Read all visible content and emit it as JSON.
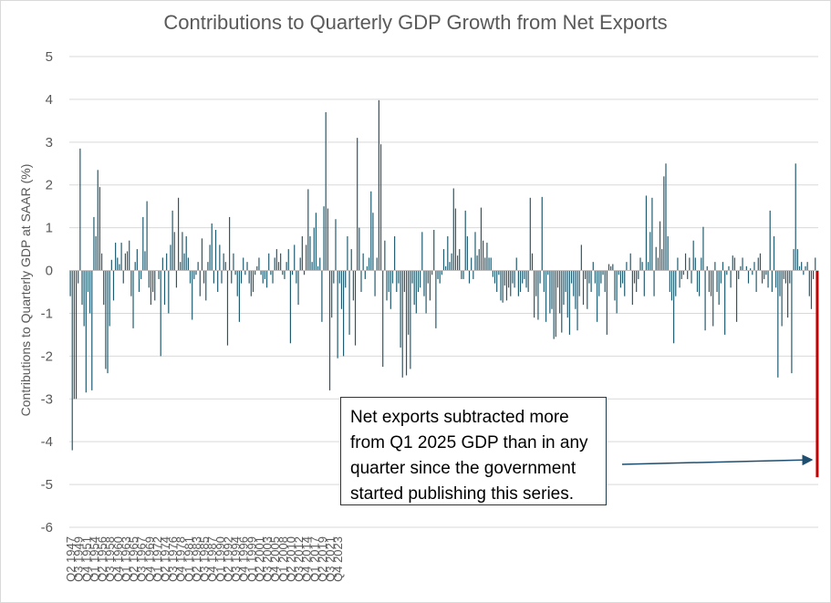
{
  "chart_data": {
    "type": "bar",
    "title": "Contributions to Quarterly GDP Growth from Net Exports",
    "ylabel": "Contributions to Quarterly GDP at SAAR (%)",
    "ylim": [
      -6,
      5
    ],
    "yticks": [
      5,
      4,
      3,
      2,
      1,
      0,
      -1,
      -2,
      -3,
      -4,
      -5,
      -6
    ],
    "grid": true,
    "legend": "none",
    "bar_color": "#1f5a6e",
    "highlight_color": "#c00000",
    "x_tick_labels": [
      "Q2 1947",
      "Q3 1949",
      "Q4 1951",
      "Q1 1954",
      "Q2 1956",
      "Q3 1958",
      "Q4 1960",
      "Q1 1963",
      "Q2 1965",
      "Q3 1967",
      "Q4 1969",
      "Q1 1972",
      "Q2 1974",
      "Q3 1976",
      "Q4 1978",
      "Q1 1981",
      "Q2 1983",
      "Q3 1985",
      "Q4 1987",
      "Q1 1990",
      "Q2 1992",
      "Q3 1994",
      "Q4 1996",
      "Q1 1999",
      "Q2 2001",
      "Q3 2003",
      "Q4 2005",
      "Q1 2008",
      "Q2 2010",
      "Q3 2012",
      "Q4 2014",
      "Q1 2017",
      "Q2 2019",
      "Q3 2021",
      "Q4 2023"
    ],
    "first_period": "Q2 1947",
    "last_period": "Q1 2025",
    "highlight": {
      "period": "Q1 2025",
      "value": -4.83
    },
    "values": [
      -0.6,
      -4.2,
      -3.0,
      -3.0,
      -0.3,
      2.85,
      -0.8,
      -1.3,
      -2.85,
      -0.5,
      -1.0,
      -2.8,
      1.25,
      0.8,
      2.35,
      1.95,
      0.4,
      -0.8,
      -2.3,
      -2.4,
      -1.3,
      0.25,
      -0.7,
      0.65,
      0.3,
      0.15,
      0.65,
      -0.3,
      0.4,
      0.45,
      0.7,
      -0.6,
      -1.35,
      0.2,
      0.5,
      -0.5,
      -0.2,
      1.25,
      0.45,
      1.62,
      -0.4,
      -0.8,
      -0.5,
      -0.7,
      0.0,
      -0.2,
      -2.0,
      0.3,
      -0.8,
      0.4,
      -1.0,
      0.6,
      1.4,
      0.9,
      -0.4,
      1.7,
      0.2,
      0.9,
      0.4,
      0.8,
      0.3,
      -0.3,
      -1.15,
      -0.2,
      -0.1,
      0.2,
      -0.6,
      0.75,
      -0.3,
      -0.7,
      0.2,
      0.6,
      1.1,
      -0.3,
      0.95,
      -0.5,
      0.6,
      -0.3,
      0.4,
      0.2,
      -1.75,
      1.25,
      -0.3,
      0.4,
      -0.1,
      -0.6,
      -1.2,
      -0.3,
      0.3,
      -0.1,
      0.2,
      -0.3,
      -0.6,
      -0.5,
      -0.1,
      0.1,
      0.3,
      -0.1,
      -0.3,
      -0.2,
      -0.4,
      0.4,
      -0.1,
      -0.3,
      0.3,
      0.5,
      0.2,
      0.4,
      -0.1,
      -0.2,
      0.2,
      0.5,
      -1.7,
      -0.1,
      0.6,
      -0.3,
      -0.8,
      0.3,
      0.8,
      -0.1,
      0.6,
      1.9,
      0.8,
      0.2,
      1.0,
      1.35,
      0.1,
      0.3,
      -1.2,
      1.5,
      3.7,
      1.45,
      -2.8,
      -1.1,
      -0.3,
      1.2,
      -2.05,
      -0.3,
      -0.9,
      -2.0,
      -0.4,
      0.8,
      -1.5,
      0.5,
      -0.7,
      -1.75,
      3.1,
      1.0,
      -0.5,
      0.4,
      -0.2,
      0.1,
      0.3,
      1.85,
      1.35,
      -0.6,
      0.3,
      3.98,
      2.95,
      -2.25,
      0.7,
      -0.7,
      -0.5,
      -0.9,
      -0.3,
      0.8,
      -0.5,
      -0.3,
      -1.8,
      -2.5,
      -0.5,
      -2.45,
      -1.5,
      -2.3,
      -0.3,
      -0.8,
      -1.0,
      -0.5,
      -0.4,
      0.9,
      -0.6,
      -1.0,
      -0.3,
      -0.7,
      -0.1,
      0.95,
      -1.35,
      -0.2,
      -0.3,
      -0.1,
      0.5,
      0.1,
      0.8,
      0.2,
      0.4,
      1.92,
      1.45,
      0.35,
      0.5,
      -0.2,
      -0.2,
      1.4,
      0.8,
      -0.3,
      0.3,
      -0.2,
      0.9,
      0.35,
      0.5,
      1.47,
      0.7,
      0.3,
      0.65,
      0.3,
      0.3,
      -0.15,
      -0.3,
      -0.5,
      -0.1,
      -0.7,
      -0.75,
      -0.35,
      -0.7,
      -0.4,
      -0.6,
      -0.3,
      -0.4,
      0.3,
      -0.6,
      -0.5,
      -0.3,
      -0.2,
      -0.4,
      -0.5,
      1.7,
      0.4,
      -1.1,
      -0.6,
      -1.15,
      -0.3,
      1.72,
      -0.5,
      -1.2,
      -0.1,
      -1.0,
      -0.9,
      -1.6,
      -1.55,
      -0.4,
      -1.0,
      -1.45,
      -0.8,
      -0.5,
      -1.1,
      -1.5,
      -0.3,
      -0.6,
      -0.9,
      -1.4,
      -0.6,
      0.6,
      -0.8,
      -0.2,
      -0.9,
      -0.3,
      -0.5,
      0.2,
      -0.3,
      -1.2,
      -0.6,
      -0.3,
      -0.1,
      -0.5,
      -1.5,
      0.15,
      0.1,
      0.15,
      -0.7,
      -1.0,
      -0.1,
      -0.4,
      -0.3,
      -0.6,
      0.2,
      0.0,
      0.4,
      -0.8,
      -0.3,
      -0.5,
      -0.2,
      0.3,
      0.2,
      -0.6,
      1.75,
      0.2,
      0.9,
      1.7,
      -0.6,
      0.55,
      0.3,
      1.15,
      0.5,
      2.2,
      2.5,
      0.8,
      -0.5,
      -0.7,
      -1.7,
      -0.6,
      0.3,
      -0.4,
      -0.2,
      -0.1,
      0.4,
      -0.2,
      0.3,
      -0.3,
      0.7,
      0.3,
      -0.5,
      -0.6,
      0.3,
      1.02,
      -1.4,
      0.1,
      -0.5,
      -0.6,
      -1.3,
      0.2,
      -0.5,
      -0.8,
      -0.3,
      0.2,
      -1.5,
      -0.1,
      0.1,
      -0.4,
      0.35,
      0.3,
      -1.2,
      -0.2,
      0.1,
      0.3,
      0.0,
      0.1,
      -0.3,
      0.05,
      -0.1,
      0.2,
      -0.5,
      0.3,
      0.4,
      -0.3,
      -0.2,
      -0.1,
      -0.4,
      1.4,
      -0.5,
      0.8,
      -0.4,
      -2.5,
      -0.6,
      -1.3,
      -0.2,
      -0.3,
      -1.1,
      -0.3,
      -2.4,
      0.5,
      2.5,
      0.5,
      0.1,
      0.2,
      -0.1,
      0.1,
      0.2,
      -0.6,
      -0.9,
      -0.2,
      0.3,
      -4.83
    ],
    "annotations": [
      {
        "text": "Net exports subtracted more from Q1 2025 GDP than in any quarter since the government started publishing this series."
      }
    ]
  }
}
